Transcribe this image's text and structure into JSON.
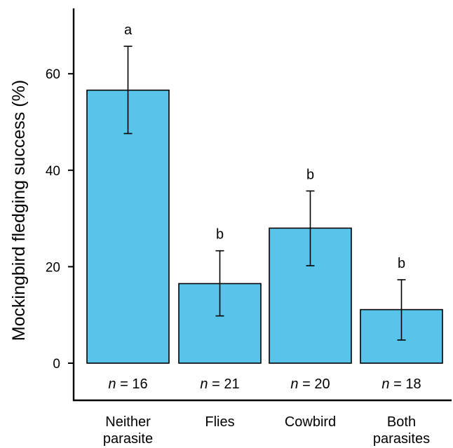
{
  "chart_data": {
    "type": "bar",
    "title": "",
    "xlabel": "",
    "ylabel": "Mockingbird fledging success (%)",
    "ylim": [
      0,
      73
    ],
    "yticks": [
      0,
      20,
      40,
      60
    ],
    "grid": false,
    "legend": "none",
    "bar_color": "#58c4ea",
    "categories": [
      {
        "line1": "Neither",
        "line2": "parasite"
      },
      {
        "line1": "Flies",
        "line2": ""
      },
      {
        "line1": "Cowbird",
        "line2": ""
      },
      {
        "line1": "Both",
        "line2": "parasites"
      }
    ],
    "values": [
      56.6,
      16.5,
      28.0,
      11.1
    ],
    "error_low": [
      47.6,
      9.8,
      20.2,
      4.8
    ],
    "error_high": [
      65.7,
      23.3,
      35.7,
      17.3
    ],
    "significance": [
      "a",
      "b",
      "b",
      "b"
    ],
    "sample_sizes": [
      {
        "prefix": "n",
        "text": " = 16"
      },
      {
        "prefix": "n",
        "text": " = 21"
      },
      {
        "prefix": "n",
        "text": " = 20"
      },
      {
        "prefix": "n",
        "text": " = 18"
      }
    ]
  }
}
